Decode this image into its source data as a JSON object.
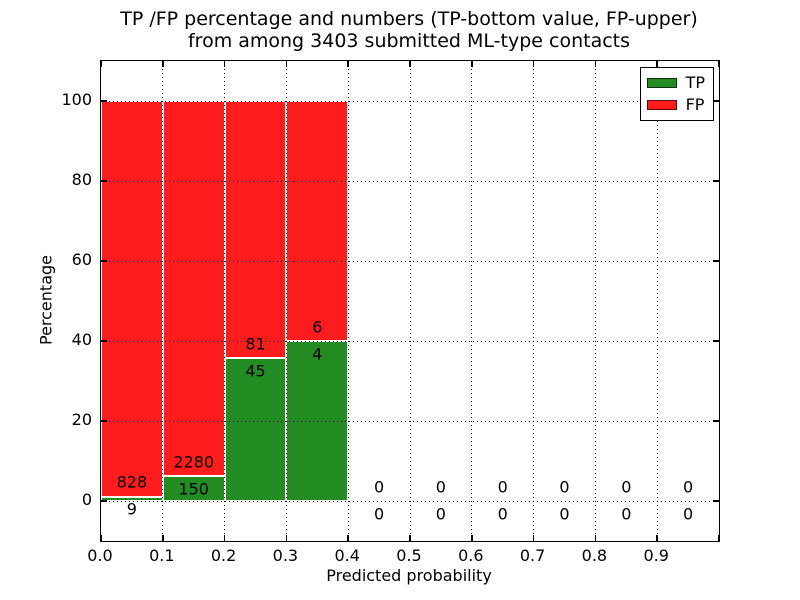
{
  "chart_data": {
    "type": "bar",
    "stacked": true,
    "normalized": "percentage",
    "title_line1": "TP /FP percentage and numbers (TP-bottom value, FP-upper)",
    "title_line2": "from among 3403 submitted ML-type contacts",
    "xlabel": "Predicted probability",
    "ylabel": "Percentage",
    "total_contacts": 3403,
    "xlim": [
      0.0,
      1.0
    ],
    "ylim": [
      -10,
      110
    ],
    "grid": "dotted",
    "legend_position": "upper right",
    "xticks": [
      "0.0",
      "0.1",
      "0.2",
      "0.3",
      "0.4",
      "0.5",
      "0.6",
      "0.7",
      "0.8",
      "0.9"
    ],
    "yticks": [
      0,
      20,
      40,
      60,
      80,
      100
    ],
    "series": [
      {
        "name": "TP",
        "color": "#228b22"
      },
      {
        "name": "FP",
        "color": "#ff1c1c"
      }
    ],
    "bin_width": 0.1,
    "bins": [
      {
        "x_start": 0.0,
        "x_end": 0.1,
        "tp": 9,
        "fp": 828
      },
      {
        "x_start": 0.1,
        "x_end": 0.2,
        "tp": 150,
        "fp": 2280
      },
      {
        "x_start": 0.2,
        "x_end": 0.3,
        "tp": 45,
        "fp": 81
      },
      {
        "x_start": 0.3,
        "x_end": 0.4,
        "tp": 4,
        "fp": 6
      },
      {
        "x_start": 0.4,
        "x_end": 0.5,
        "tp": 0,
        "fp": 0
      },
      {
        "x_start": 0.5,
        "x_end": 0.6,
        "tp": 0,
        "fp": 0
      },
      {
        "x_start": 0.6,
        "x_end": 0.7,
        "tp": 0,
        "fp": 0
      },
      {
        "x_start": 0.7,
        "x_end": 0.8,
        "tp": 0,
        "fp": 0
      },
      {
        "x_start": 0.8,
        "x_end": 0.9,
        "tp": 0,
        "fp": 0
      },
      {
        "x_start": 0.9,
        "x_end": 1.0,
        "tp": 0,
        "fp": 0
      }
    ]
  }
}
